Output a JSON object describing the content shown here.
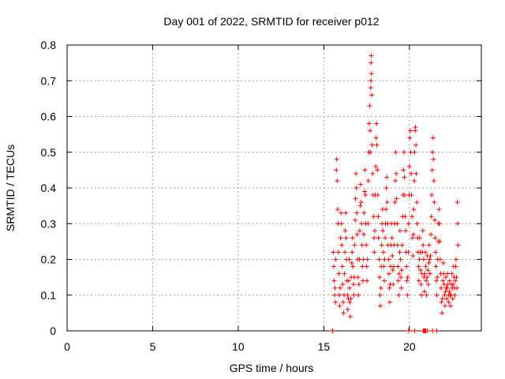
{
  "chart_data": {
    "type": "scatter",
    "title": "Day 001 of 2022, SRMTID for receiver p012",
    "xlabel": "GPS time / hours",
    "ylabel": "SRMTID / TECUs",
    "xlim": [
      0,
      24.2
    ],
    "ylim": [
      0,
      0.8
    ],
    "grid": true,
    "marker": "+",
    "color": "#ff0000",
    "x_ticks": [
      0,
      5,
      10,
      15,
      20
    ],
    "x_tick_labels": [
      "0",
      "5",
      "10",
      "15",
      "20"
    ],
    "y_ticks": [
      0,
      0.1,
      0.2,
      0.3,
      0.4,
      0.5,
      0.6,
      0.7,
      0.8
    ],
    "y_tick_labels": [
      "0",
      "0.1",
      "0.2",
      "0.3",
      "0.4",
      "0.5",
      "0.6",
      "0.7",
      "0.8"
    ],
    "series": [
      {
        "name": "SRMTID",
        "points": [
          [
            15.5,
            0
          ],
          [
            15.52,
            0
          ],
          [
            15.55,
            0.22
          ],
          [
            15.58,
            0.18
          ],
          [
            15.6,
            0.14
          ],
          [
            15.63,
            0.1
          ],
          [
            15.65,
            0.12
          ],
          [
            15.68,
            0.08
          ],
          [
            15.7,
            0.2
          ],
          [
            15.73,
            0.45
          ],
          [
            15.75,
            0.48
          ],
          [
            15.78,
            0.42
          ],
          [
            15.8,
            0.34
          ],
          [
            15.83,
            0.3
          ],
          [
            15.85,
            0.22
          ],
          [
            15.88,
            0.16
          ],
          [
            15.9,
            0.1
          ],
          [
            15.93,
            0.07
          ],
          [
            15.95,
            0.12
          ],
          [
            15.98,
            0.26
          ],
          [
            16.0,
            0.33
          ],
          [
            16.03,
            0.3
          ],
          [
            16.05,
            0.24
          ],
          [
            16.08,
            0.18
          ],
          [
            16.1,
            0.13
          ],
          [
            16.13,
            0.08
          ],
          [
            16.15,
            0.05
          ],
          [
            16.18,
            0.1
          ],
          [
            16.2,
            0.16
          ],
          [
            16.23,
            0.22
          ],
          [
            16.25,
            0.28
          ],
          [
            16.28,
            0.33
          ],
          [
            16.3,
            0.26
          ],
          [
            16.33,
            0.2
          ],
          [
            16.35,
            0.14
          ],
          [
            16.38,
            0.1
          ],
          [
            16.4,
            0.06
          ],
          [
            16.43,
            0.09
          ],
          [
            16.45,
            0.14
          ],
          [
            16.48,
            0.2
          ],
          [
            16.5,
            0.12
          ],
          [
            16.52,
            0.08
          ],
          [
            16.55,
            0.04
          ],
          [
            16.58,
            0.09
          ],
          [
            16.6,
            0.15
          ],
          [
            16.63,
            0.19
          ],
          [
            16.65,
            0.22
          ],
          [
            16.68,
            0.26
          ],
          [
            16.7,
            0.18
          ],
          [
            16.73,
            0.13
          ],
          [
            16.75,
            0.1
          ],
          [
            16.78,
            0.15
          ],
          [
            16.8,
            0.24
          ],
          [
            16.83,
            0.31
          ],
          [
            16.85,
            0.37
          ],
          [
            16.88,
            0.44
          ],
          [
            16.9,
            0.4
          ],
          [
            16.93,
            0.33
          ],
          [
            16.95,
            0.27
          ],
          [
            16.98,
            0.2
          ],
          [
            17.0,
            0.15
          ],
          [
            17.02,
            0.1
          ],
          [
            17.05,
            0.13
          ],
          [
            17.08,
            0.2
          ],
          [
            17.1,
            0.28
          ],
          [
            17.13,
            0.35
          ],
          [
            17.15,
            0.41
          ],
          [
            17.18,
            0.36
          ],
          [
            17.2,
            0.3
          ],
          [
            17.23,
            0.24
          ],
          [
            17.25,
            0.18
          ],
          [
            17.28,
            0.14
          ],
          [
            17.3,
            0.2
          ],
          [
            17.33,
            0.27
          ],
          [
            17.35,
            0.33
          ],
          [
            17.38,
            0.39
          ],
          [
            17.4,
            0.45
          ],
          [
            17.43,
            0.38
          ],
          [
            17.45,
            0.3
          ],
          [
            17.48,
            0.24
          ],
          [
            17.5,
            0.18
          ],
          [
            17.52,
            0.14
          ],
          [
            17.55,
            0.2
          ],
          [
            17.58,
            0.3
          ],
          [
            17.6,
            0.42
          ],
          [
            17.63,
            0.5
          ],
          [
            17.65,
            0.58
          ],
          [
            17.68,
            0.63
          ],
          [
            17.7,
            0.56
          ],
          [
            17.72,
            0.5
          ],
          [
            17.74,
            0.68
          ],
          [
            17.75,
            0.7
          ],
          [
            17.76,
            0.75
          ],
          [
            17.77,
            0.77
          ],
          [
            17.78,
            0.72
          ],
          [
            17.8,
            0.66
          ],
          [
            17.82,
            0.52
          ],
          [
            17.85,
            0.44
          ],
          [
            17.88,
            0.38
          ],
          [
            17.9,
            0.32
          ],
          [
            17.93,
            0.26
          ],
          [
            17.95,
            0.22
          ],
          [
            17.98,
            0.28
          ],
          [
            18.0,
            0.38
          ],
          [
            18.03,
            0.46
          ],
          [
            18.05,
            0.54
          ],
          [
            18.08,
            0.58
          ],
          [
            18.1,
            0.52
          ],
          [
            18.13,
            0.45
          ],
          [
            18.15,
            0.38
          ],
          [
            18.18,
            0.32
          ],
          [
            18.2,
            0.26
          ],
          [
            18.23,
            0.2
          ],
          [
            18.25,
            0.15
          ],
          [
            18.28,
            0.1
          ],
          [
            18.3,
            0.07
          ],
          [
            18.33,
            0.12
          ],
          [
            18.35,
            0.18
          ],
          [
            18.38,
            0.24
          ],
          [
            18.4,
            0.3
          ],
          [
            18.43,
            0.34
          ],
          [
            18.45,
            0.28
          ],
          [
            18.48,
            0.22
          ],
          [
            18.5,
            0.18
          ],
          [
            18.53,
            0.14
          ],
          [
            18.55,
            0.2
          ],
          [
            18.58,
            0.26
          ],
          [
            18.6,
            0.3
          ],
          [
            18.63,
            0.34
          ],
          [
            18.65,
            0.4
          ],
          [
            18.68,
            0.43
          ],
          [
            18.7,
            0.36
          ],
          [
            18.73,
            0.3
          ],
          [
            18.75,
            0.24
          ],
          [
            18.78,
            0.2
          ],
          [
            18.8,
            0.16
          ],
          [
            18.83,
            0.12
          ],
          [
            18.85,
            0.08
          ],
          [
            18.88,
            0.13
          ],
          [
            18.9,
            0.18
          ],
          [
            18.93,
            0.24
          ],
          [
            18.95,
            0.3
          ],
          [
            18.98,
            0.26
          ],
          [
            19.0,
            0.21
          ],
          [
            19.03,
            0.17
          ],
          [
            19.05,
            0.13
          ],
          [
            19.08,
            0.18
          ],
          [
            19.1,
            0.24
          ],
          [
            19.13,
            0.3
          ],
          [
            19.15,
            0.36
          ],
          [
            19.18,
            0.42
          ],
          [
            19.2,
            0.5
          ],
          [
            19.23,
            0.44
          ],
          [
            19.25,
            0.37
          ],
          [
            19.28,
            0.3
          ],
          [
            19.3,
            0.24
          ],
          [
            19.33,
            0.18
          ],
          [
            19.35,
            0.14
          ],
          [
            19.38,
            0.1
          ],
          [
            19.4,
            0.16
          ],
          [
            19.43,
            0.22
          ],
          [
            19.45,
            0.28
          ],
          [
            19.48,
            0.2
          ],
          [
            19.5,
            0.15
          ],
          [
            19.53,
            0.12
          ],
          [
            19.55,
            0.17
          ],
          [
            19.58,
            0.24
          ],
          [
            19.6,
            0.32
          ],
          [
            19.63,
            0.38
          ],
          [
            19.65,
            0.45
          ],
          [
            19.68,
            0.5
          ],
          [
            19.7,
            0.43
          ],
          [
            19.72,
            0.38
          ],
          [
            19.75,
            0.32
          ],
          [
            19.78,
            0.28
          ],
          [
            19.8,
            0.22
          ],
          [
            19.83,
            0.18
          ],
          [
            19.85,
            0.14
          ],
          [
            19.88,
            0.1
          ],
          [
            19.9,
            0.15
          ],
          [
            19.93,
            0.22
          ],
          [
            19.95,
            0.3
          ],
          [
            19.98,
            0.38
          ],
          [
            20.0,
            0.46
          ],
          [
            20.02,
            0.54
          ],
          [
            20.05,
            0.56
          ],
          [
            20.07,
            0.5
          ],
          [
            20.1,
            0.44
          ],
          [
            20.12,
            0.38
          ],
          [
            20.15,
            0.32
          ],
          [
            20.18,
            0.26
          ],
          [
            20.2,
            0.21
          ],
          [
            20.23,
            0.27
          ],
          [
            20.25,
            0.34
          ],
          [
            20.28,
            0.42
          ],
          [
            20.3,
            0.5
          ],
          [
            20.33,
            0.56
          ],
          [
            20.35,
            0.57
          ],
          [
            20.38,
            0.52
          ],
          [
            20.4,
            0.44
          ],
          [
            20.43,
            0.36
          ],
          [
            20.45,
            0.3
          ],
          [
            20.48,
            0.26
          ],
          [
            20.5,
            0.22
          ],
          [
            20.53,
            0.18
          ],
          [
            20.55,
            0.14
          ],
          [
            20.58,
            0.2
          ],
          [
            20.6,
            0.26
          ],
          [
            20.63,
            0.22
          ],
          [
            20.65,
            0.17
          ],
          [
            20.68,
            0.13
          ],
          [
            20.7,
            0.1
          ],
          [
            20.73,
            0.16
          ],
          [
            20.75,
            0.22
          ],
          [
            20.78,
            0.28
          ],
          [
            20.8,
            0.24
          ],
          [
            20.83,
            0.2
          ],
          [
            20.85,
            0.15
          ],
          [
            20.88,
            0.11
          ],
          [
            20.9,
            0.16
          ],
          [
            20.93,
            0.22
          ],
          [
            20.95,
            0.18
          ],
          [
            20.98,
            0.14
          ],
          [
            21.0,
            0.1
          ],
          [
            21.03,
            0.15
          ],
          [
            21.05,
            0.21
          ],
          [
            21.08,
            0.17
          ],
          [
            21.1,
            0.13
          ],
          [
            21.13,
            0.19
          ],
          [
            21.15,
            0.24
          ],
          [
            21.18,
            0.2
          ],
          [
            21.2,
            0.16
          ],
          [
            21.23,
            0.21
          ],
          [
            21.25,
            0.27
          ],
          [
            21.28,
            0.32
          ],
          [
            21.3,
            0.38
          ],
          [
            21.33,
            0.45
          ],
          [
            21.35,
            0.5
          ],
          [
            21.38,
            0.54
          ],
          [
            21.4,
            0.48
          ],
          [
            21.43,
            0.42
          ],
          [
            21.45,
            0.36
          ],
          [
            21.48,
            0.31
          ],
          [
            21.5,
            0.26
          ],
          [
            21.53,
            0.22
          ],
          [
            21.55,
            0.18
          ],
          [
            21.58,
            0.14
          ],
          [
            21.6,
            0.1
          ],
          [
            21.63,
            0.15
          ],
          [
            21.65,
            0.2
          ],
          [
            21.68,
            0.25
          ],
          [
            21.7,
            0.3
          ],
          [
            21.73,
            0.34
          ],
          [
            21.75,
            0.3
          ],
          [
            21.78,
            0.25
          ],
          [
            21.8,
            0.2
          ],
          [
            21.83,
            0.16
          ],
          [
            21.85,
            0.12
          ],
          [
            21.88,
            0.08
          ],
          [
            21.9,
            0.05
          ],
          [
            21.93,
            0.09
          ],
          [
            21.95,
            0.14
          ],
          [
            21.98,
            0.19
          ],
          [
            22.0,
            0.16
          ],
          [
            22.03,
            0.13
          ],
          [
            22.05,
            0.1
          ],
          [
            22.08,
            0.07
          ],
          [
            22.1,
            0.11
          ],
          [
            22.13,
            0.15
          ],
          [
            22.15,
            0.12
          ],
          [
            22.18,
            0.09
          ],
          [
            22.2,
            0.12
          ],
          [
            22.23,
            0.16
          ],
          [
            22.25,
            0.13
          ],
          [
            22.28,
            0.1
          ],
          [
            22.3,
            0.08
          ],
          [
            22.33,
            0.11
          ],
          [
            22.35,
            0.14
          ],
          [
            22.38,
            0.1
          ],
          [
            22.4,
            0.07
          ],
          [
            22.43,
            0.1
          ],
          [
            22.45,
            0.13
          ],
          [
            22.48,
            0.16
          ],
          [
            22.5,
            0.12
          ],
          [
            22.53,
            0.09
          ],
          [
            22.55,
            0.13
          ],
          [
            22.58,
            0.18
          ],
          [
            22.6,
            0.15
          ],
          [
            22.63,
            0.12
          ],
          [
            22.65,
            0.1
          ],
          [
            22.68,
            0.14
          ],
          [
            22.7,
            0.18
          ],
          [
            22.72,
            0.2
          ],
          [
            22.75,
            0.15
          ],
          [
            22.78,
            0.12
          ],
          [
            22.8,
            0.36
          ],
          [
            22.82,
            0.3
          ],
          [
            22.84,
            0.24
          ],
          [
            19.95,
            0
          ],
          [
            20.3,
            0
          ],
          [
            20.8,
            0
          ],
          [
            20.83,
            0
          ],
          [
            20.87,
            0
          ],
          [
            20.9,
            0
          ],
          [
            20.95,
            0
          ],
          [
            21.05,
            0
          ],
          [
            21.35,
            0
          ],
          [
            21.6,
            0
          ]
        ]
      }
    ]
  }
}
